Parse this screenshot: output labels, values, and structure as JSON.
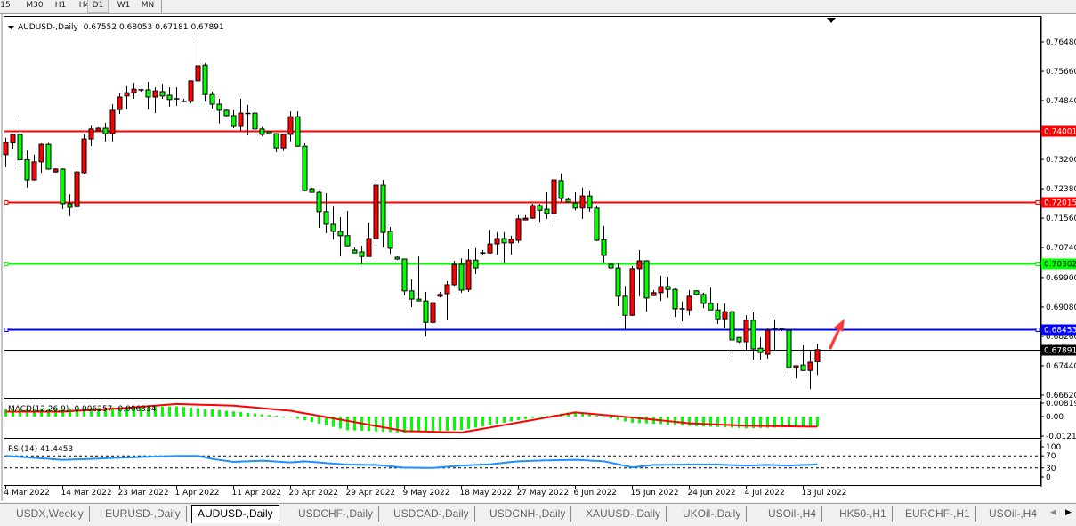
{
  "timeframes": [
    "15",
    "M30",
    "H1",
    "H4",
    "D1",
    "W1",
    "MN"
  ],
  "active_timeframe": "D1",
  "header": {
    "symbol": "AUDUSD-,Daily",
    "open": "0.67552",
    "high": "0.68053",
    "low": "0.67181",
    "close": "0.67891"
  },
  "macd_label": "MACD(12,26,9) -0.006257 -0.006314",
  "rsi_label": "RSI(14) 41.4453",
  "tabs": [
    "USDX,Weekly",
    "EURUSD-,Daily",
    "AUDUSD-,Daily",
    "USDCHF-,Daily",
    "USDCAD-,Daily",
    "USDCNH-,Daily",
    "XAUUSD-,Daily",
    "UKOil-,Daily",
    "USOil-,H4",
    "HK50-,H1",
    "EURCHF-,H1",
    "USOil-,H4"
  ],
  "active_tab": "AUDUSD-,Daily",
  "colors": {
    "up": "#ff0000",
    "down": "#00ff00",
    "macd_hist": "#00ff00",
    "macd_signal": "#ff0000",
    "rsi": "#1e90ff"
  },
  "chart_data": {
    "type": "candlestick",
    "symbol": "AUDUSD-",
    "timeframe": "Daily",
    "ylim": [
      0.6662,
      0.7648
    ],
    "y_ticks": [
      "0.76480",
      "0.75660",
      "0.74840",
      "0.73200",
      "0.72380",
      "0.71560",
      "0.70740",
      "0.69900",
      "0.69080",
      "0.68260",
      "0.67440",
      "0.66620"
    ],
    "x_ticks": [
      {
        "label": "4 Mar 2022",
        "candle": 0
      },
      {
        "label": "14 Mar 2022",
        "candle": 8
      },
      {
        "label": "23 Mar 2022",
        "candle": 16
      },
      {
        "label": "1 Apr 2022",
        "candle": 24
      },
      {
        "label": "11 Apr 2022",
        "candle": 32
      },
      {
        "label": "20 Apr 2022",
        "candle": 40
      },
      {
        "label": "29 Apr 2022",
        "candle": 48
      },
      {
        "label": "9 May 2022",
        "candle": 56
      },
      {
        "label": "18 May 2022",
        "candle": 64
      },
      {
        "label": "27 May 2022",
        "candle": 72
      },
      {
        "label": "6 Jun 2022",
        "candle": 80
      },
      {
        "label": "15 Jun 2022",
        "candle": 88
      },
      {
        "label": "24 Jun 2022",
        "candle": 96
      },
      {
        "label": "4 Jul 2022",
        "candle": 104
      },
      {
        "label": "13 Jul 2022",
        "candle": 112
      }
    ],
    "ohlc_fields": [
      "open",
      "high",
      "low",
      "close"
    ],
    "candles": [
      [
        0.7333,
        0.738,
        0.7298,
        0.7367
      ],
      [
        0.7366,
        0.7392,
        0.735,
        0.739
      ],
      [
        0.739,
        0.7437,
        0.7305,
        0.7319
      ],
      [
        0.7319,
        0.7345,
        0.7241,
        0.7263
      ],
      [
        0.7263,
        0.7333,
        0.7261,
        0.7313
      ],
      [
        0.7313,
        0.7365,
        0.7283,
        0.7362
      ],
      [
        0.7362,
        0.7366,
        0.7291,
        0.7293
      ],
      [
        0.7285,
        0.7295,
        0.7283,
        0.7293
      ],
      [
        0.7293,
        0.7295,
        0.7181,
        0.7196
      ],
      [
        0.7196,
        0.7223,
        0.7161,
        0.7186
      ],
      [
        0.7188,
        0.7293,
        0.7176,
        0.7285
      ],
      [
        0.7283,
        0.739,
        0.7278,
        0.7377
      ],
      [
        0.7377,
        0.7414,
        0.7357,
        0.7405
      ],
      [
        0.74,
        0.741,
        0.74,
        0.7407
      ],
      [
        0.7407,
        0.7422,
        0.737,
        0.7392
      ],
      [
        0.7392,
        0.7474,
        0.737,
        0.7457
      ],
      [
        0.7459,
        0.7504,
        0.7447,
        0.7494
      ],
      [
        0.7497,
        0.7524,
        0.7459,
        0.7506
      ],
      [
        0.7506,
        0.7534,
        0.7489,
        0.7516
      ],
      [
        0.7514,
        0.7516,
        0.7509,
        0.7511
      ],
      [
        0.7514,
        0.7536,
        0.7459,
        0.7494
      ],
      [
        0.7494,
        0.7521,
        0.7449,
        0.7511
      ],
      [
        0.7509,
        0.7531,
        0.7489,
        0.7497
      ],
      [
        0.7499,
        0.7521,
        0.7467,
        0.7487
      ],
      [
        0.7489,
        0.7521,
        0.7469,
        0.7488
      ],
      [
        0.7482,
        0.7489,
        0.7479,
        0.748
      ],
      [
        0.7482,
        0.7539,
        0.7477,
        0.7539
      ],
      [
        0.7539,
        0.7658,
        0.7531,
        0.7581
      ],
      [
        0.7583,
        0.7588,
        0.7482,
        0.7501
      ],
      [
        0.7501,
        0.7509,
        0.7462,
        0.7474
      ],
      [
        0.7474,
        0.7489,
        0.742,
        0.7457
      ],
      [
        0.7457,
        0.7459,
        0.7439,
        0.7442
      ],
      [
        0.7442,
        0.7457,
        0.7407,
        0.7412
      ],
      [
        0.7412,
        0.7489,
        0.74,
        0.7449
      ],
      [
        0.7447,
        0.7472,
        0.7387,
        0.7448
      ],
      [
        0.7449,
        0.7464,
        0.7395,
        0.7405
      ],
      [
        0.7405,
        0.741,
        0.7385,
        0.739
      ],
      [
        0.7397,
        0.7398,
        0.739,
        0.7392
      ],
      [
        0.7392,
        0.7393,
        0.734,
        0.7352
      ],
      [
        0.7352,
        0.7391,
        0.7343,
        0.739
      ],
      [
        0.739,
        0.7454,
        0.737,
        0.7439
      ],
      [
        0.7439,
        0.7454,
        0.7355,
        0.7357
      ],
      [
        0.7357,
        0.7365,
        0.7231,
        0.7233
      ],
      [
        0.7238,
        0.7241,
        0.7228,
        0.7228
      ],
      [
        0.7228,
        0.7231,
        0.7129,
        0.7174
      ],
      [
        0.7174,
        0.7226,
        0.7114,
        0.7139
      ],
      [
        0.7139,
        0.7188,
        0.7097,
        0.7119
      ],
      [
        0.7119,
        0.7159,
        0.7049,
        0.7107
      ],
      [
        0.7107,
        0.7176,
        0.7077,
        0.7079
      ],
      [
        0.7067,
        0.7074,
        0.7059,
        0.7059
      ],
      [
        0.7062,
        0.7079,
        0.7027,
        0.7049
      ],
      [
        0.7049,
        0.7144,
        0.7049,
        0.7099
      ],
      [
        0.7099,
        0.7263,
        0.7087,
        0.7248
      ],
      [
        0.7248,
        0.7263,
        0.7074,
        0.7116
      ],
      [
        0.7119,
        0.7131,
        0.7057,
        0.7072
      ],
      [
        0.7047,
        0.7049,
        0.7039,
        0.7042
      ],
      [
        0.7042,
        0.7043,
        0.694,
        0.6953
      ],
      [
        0.6953,
        0.6985,
        0.6908,
        0.693
      ],
      [
        0.693,
        0.7049,
        0.6925,
        0.6925
      ],
      [
        0.6925,
        0.695,
        0.6826,
        0.6865
      ],
      [
        0.6865,
        0.693,
        0.6861,
        0.692
      ],
      [
        0.6938,
        0.695,
        0.6935,
        0.6943
      ],
      [
        0.6945,
        0.698,
        0.6871,
        0.697
      ],
      [
        0.697,
        0.7037,
        0.6967,
        0.7027
      ],
      [
        0.7027,
        0.7044,
        0.6948,
        0.6955
      ],
      [
        0.6957,
        0.7069,
        0.695,
        0.7039
      ],
      [
        0.7039,
        0.7072,
        0.7,
        0.7017
      ],
      [
        0.7059,
        0.7067,
        0.7054,
        0.7059
      ],
      [
        0.7059,
        0.7124,
        0.7057,
        0.7084
      ],
      [
        0.7084,
        0.7117,
        0.7054,
        0.7099
      ],
      [
        0.7099,
        0.7117,
        0.7032,
        0.7087
      ],
      [
        0.7087,
        0.7107,
        0.7054,
        0.7097
      ],
      [
        0.7094,
        0.7164,
        0.7087,
        0.7154
      ],
      [
        0.7151,
        0.7164,
        0.7151,
        0.7156
      ],
      [
        0.7156,
        0.7196,
        0.7154,
        0.7191
      ],
      [
        0.7191,
        0.7196,
        0.7146,
        0.7178
      ],
      [
        0.7181,
        0.7228,
        0.7154,
        0.7169
      ],
      [
        0.7169,
        0.7268,
        0.7139,
        0.7263
      ],
      [
        0.7261,
        0.728,
        0.7201,
        0.7211
      ],
      [
        0.7208,
        0.7213,
        0.7201,
        0.7201
      ],
      [
        0.7198,
        0.7228,
        0.7178,
        0.7184
      ],
      [
        0.7184,
        0.7241,
        0.7154,
        0.7218
      ],
      [
        0.7218,
        0.7231,
        0.7174,
        0.7184
      ],
      [
        0.7184,
        0.7191,
        0.7092,
        0.7094
      ],
      [
        0.7096,
        0.7134,
        0.7032,
        0.7052
      ],
      [
        0.7027,
        0.703,
        0.7012,
        0.7017
      ],
      [
        0.7017,
        0.703,
        0.691,
        0.6938
      ],
      [
        0.6938,
        0.6967,
        0.6846,
        0.6885
      ],
      [
        0.6885,
        0.7022,
        0.6883,
        0.7015
      ],
      [
        0.7015,
        0.7067,
        0.6938,
        0.7037
      ],
      [
        0.7037,
        0.7039,
        0.6895,
        0.6933
      ],
      [
        0.694,
        0.6955,
        0.6938,
        0.6948
      ],
      [
        0.6948,
        0.6995,
        0.6925,
        0.6965
      ],
      [
        0.6965,
        0.6992,
        0.6933,
        0.6957
      ],
      [
        0.6957,
        0.696,
        0.688,
        0.6903
      ],
      [
        0.6903,
        0.6923,
        0.6868,
        0.69
      ],
      [
        0.69,
        0.6955,
        0.6885,
        0.6938
      ],
      [
        0.6953,
        0.6955,
        0.694,
        0.6943
      ],
      [
        0.6943,
        0.6948,
        0.6905,
        0.6918
      ],
      [
        0.6918,
        0.6962,
        0.69,
        0.69
      ],
      [
        0.69,
        0.6918,
        0.6861,
        0.6875
      ],
      [
        0.6875,
        0.6918,
        0.6851,
        0.6895
      ],
      [
        0.6895,
        0.69,
        0.6761,
        0.6816
      ],
      [
        0.6823,
        0.6823,
        0.6808,
        0.6811
      ],
      [
        0.6811,
        0.6885,
        0.6789,
        0.6871
      ],
      [
        0.6871,
        0.6893,
        0.6761,
        0.6791
      ],
      [
        0.6793,
        0.6823,
        0.6761,
        0.6781
      ],
      [
        0.6776,
        0.6848,
        0.6764,
        0.6843
      ],
      [
        0.6848,
        0.6873,
        0.6789,
        0.6846
      ],
      [
        0.6846,
        0.6851,
        0.6841,
        0.6846
      ],
      [
        0.6843,
        0.6843,
        0.6714,
        0.6739
      ],
      [
        0.6739,
        0.6744,
        0.6709,
        0.6744
      ],
      [
        0.6746,
        0.6801,
        0.6729,
        0.6731
      ],
      [
        0.6731,
        0.6789,
        0.6679,
        0.6754
      ],
      [
        0.67552,
        0.68053,
        0.67181,
        0.67891
      ]
    ],
    "levels": [
      {
        "price": "0.74001",
        "color": "#ff0000"
      },
      {
        "price": "0.72015",
        "color": "#ff0000"
      },
      {
        "price": "0.70302",
        "color": "#00ff00"
      },
      {
        "price": "0.68453",
        "color": "#0000ff"
      },
      {
        "price": "0.67891",
        "color": "#000000",
        "current": true
      }
    ],
    "annotation": {
      "type": "arrow",
      "direction": "up-right",
      "color": "#ff3333"
    },
    "macd": {
      "params": "12,26,9",
      "ylim": [
        -0.01212,
        0.008197
      ],
      "y_ticks": [
        "0.008197",
        "0.00",
        "-0.01212"
      ],
      "main_points": [
        [
          0,
          0.0047
        ],
        [
          8,
          0.0047
        ],
        [
          16,
          0.0057
        ],
        [
          24,
          0.0063
        ],
        [
          32,
          0.0031
        ],
        [
          40,
          -0.0004
        ],
        [
          48,
          -0.0084
        ],
        [
          56,
          -0.01
        ],
        [
          64,
          -0.0084
        ],
        [
          72,
          -0.0023
        ],
        [
          80,
          0.0031
        ],
        [
          88,
          -0.0038
        ],
        [
          96,
          -0.0057
        ],
        [
          104,
          -0.0073
        ],
        [
          114,
          -0.006257
        ]
      ],
      "signal_points": [
        [
          0,
          0.003
        ],
        [
          8,
          0.003
        ],
        [
          16,
          0.005
        ],
        [
          24,
          0.0077
        ],
        [
          32,
          0.0067
        ],
        [
          40,
          0.0035
        ],
        [
          48,
          -0.0027
        ],
        [
          56,
          -0.009
        ],
        [
          64,
          -0.0099
        ],
        [
          72,
          -0.0037
        ],
        [
          80,
          0.0025
        ],
        [
          88,
          -0.0006
        ],
        [
          96,
          -0.0042
        ],
        [
          104,
          -0.0057
        ],
        [
          114,
          -0.006314
        ]
      ]
    },
    "rsi": {
      "period": 14,
      "ylim": [
        0,
        100
      ],
      "y_ticks": [
        "100",
        "70",
        "30",
        "0"
      ],
      "levels": [
        70,
        30
      ],
      "points": [
        [
          0,
          70
        ],
        [
          3,
          65
        ],
        [
          8,
          57
        ],
        [
          12,
          60
        ],
        [
          16,
          64
        ],
        [
          24,
          70
        ],
        [
          27,
          70
        ],
        [
          29,
          60
        ],
        [
          32,
          50
        ],
        [
          36,
          54
        ],
        [
          40,
          48
        ],
        [
          42,
          52
        ],
        [
          45,
          46
        ],
        [
          48,
          41
        ],
        [
          52,
          40
        ],
        [
          56,
          31
        ],
        [
          60,
          30
        ],
        [
          64,
          38
        ],
        [
          68,
          42
        ],
        [
          72,
          52
        ],
        [
          76,
          55
        ],
        [
          80,
          57
        ],
        [
          84,
          52
        ],
        [
          88,
          32
        ],
        [
          91,
          40
        ],
        [
          96,
          41
        ],
        [
          100,
          41
        ],
        [
          104,
          38
        ],
        [
          107,
          40
        ],
        [
          110,
          38
        ],
        [
          114,
          41.4453
        ]
      ]
    }
  }
}
